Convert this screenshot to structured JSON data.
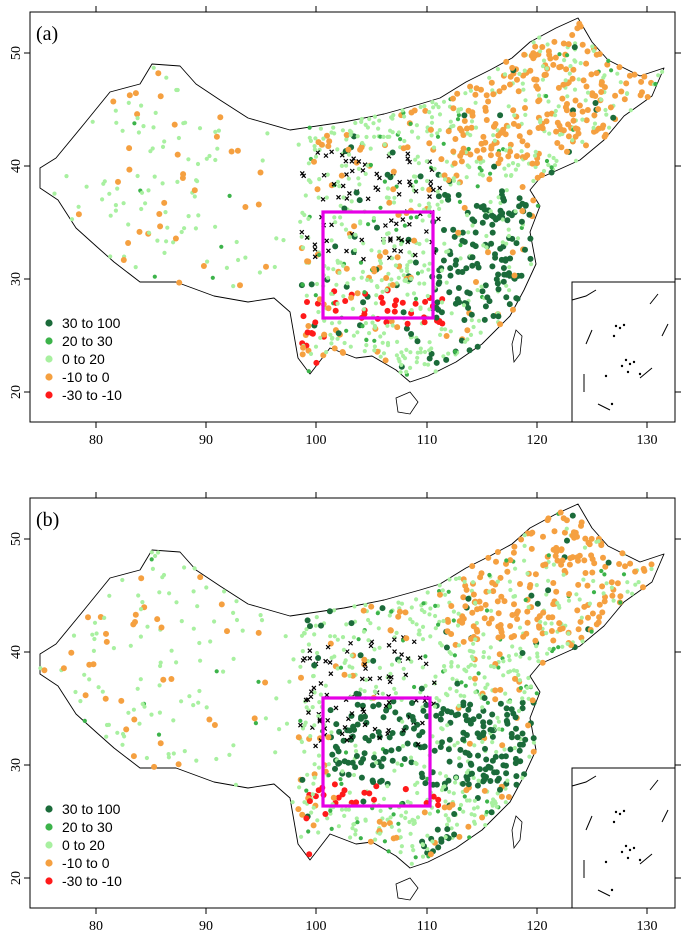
{
  "figure": {
    "panels": [
      {
        "id": "a",
        "tag": "(a)",
        "legend": [
          {
            "label": "30  to  100",
            "color": "#1b6b3a"
          },
          {
            "label": "20  to  30",
            "color": "#3cb34a"
          },
          {
            "label": "0  to  20",
            "color": "#a8f0a0"
          },
          {
            "label": "-10  to  0",
            "color": "#f5a040"
          },
          {
            "label": "-30  to  -10",
            "color": "#ff1a1a"
          }
        ],
        "x_ticks": [
          "80",
          "90",
          "100",
          "110",
          "120",
          "130"
        ],
        "y_ticks": [
          "20",
          "30",
          "40",
          "50"
        ]
      },
      {
        "id": "b",
        "tag": "(b)",
        "legend": [
          {
            "label": "30  to  100",
            "color": "#1b6b3a"
          },
          {
            "label": "20  to  30",
            "color": "#3cb34a"
          },
          {
            "label": "0  to  20",
            "color": "#a8f0a0"
          },
          {
            "label": "-10  to  0",
            "color": "#f5a040"
          },
          {
            "label": "-30  to  -10",
            "color": "#ff1a1a"
          }
        ],
        "x_ticks": [
          "80",
          "90",
          "100",
          "110",
          "120",
          "130"
        ],
        "y_ticks": [
          "20",
          "30",
          "40",
          "50"
        ]
      }
    ],
    "map": {
      "lon_range": [
        74,
        136
      ],
      "lat_range": [
        17,
        53
      ],
      "region_box": {
        "lon": [
          102,
          112.5
        ],
        "lat": [
          26.5,
          36
        ]
      },
      "insignificant_marker": "black-cross",
      "colors": {
        "very_high": "#1b6b3a",
        "high": "#3cb34a",
        "moderate": "#a8f0a0",
        "low": "#f5a040",
        "very_low": "#ff1a1a",
        "region_box": "#e600e6",
        "insignificant": "#000000"
      }
    }
  }
}
